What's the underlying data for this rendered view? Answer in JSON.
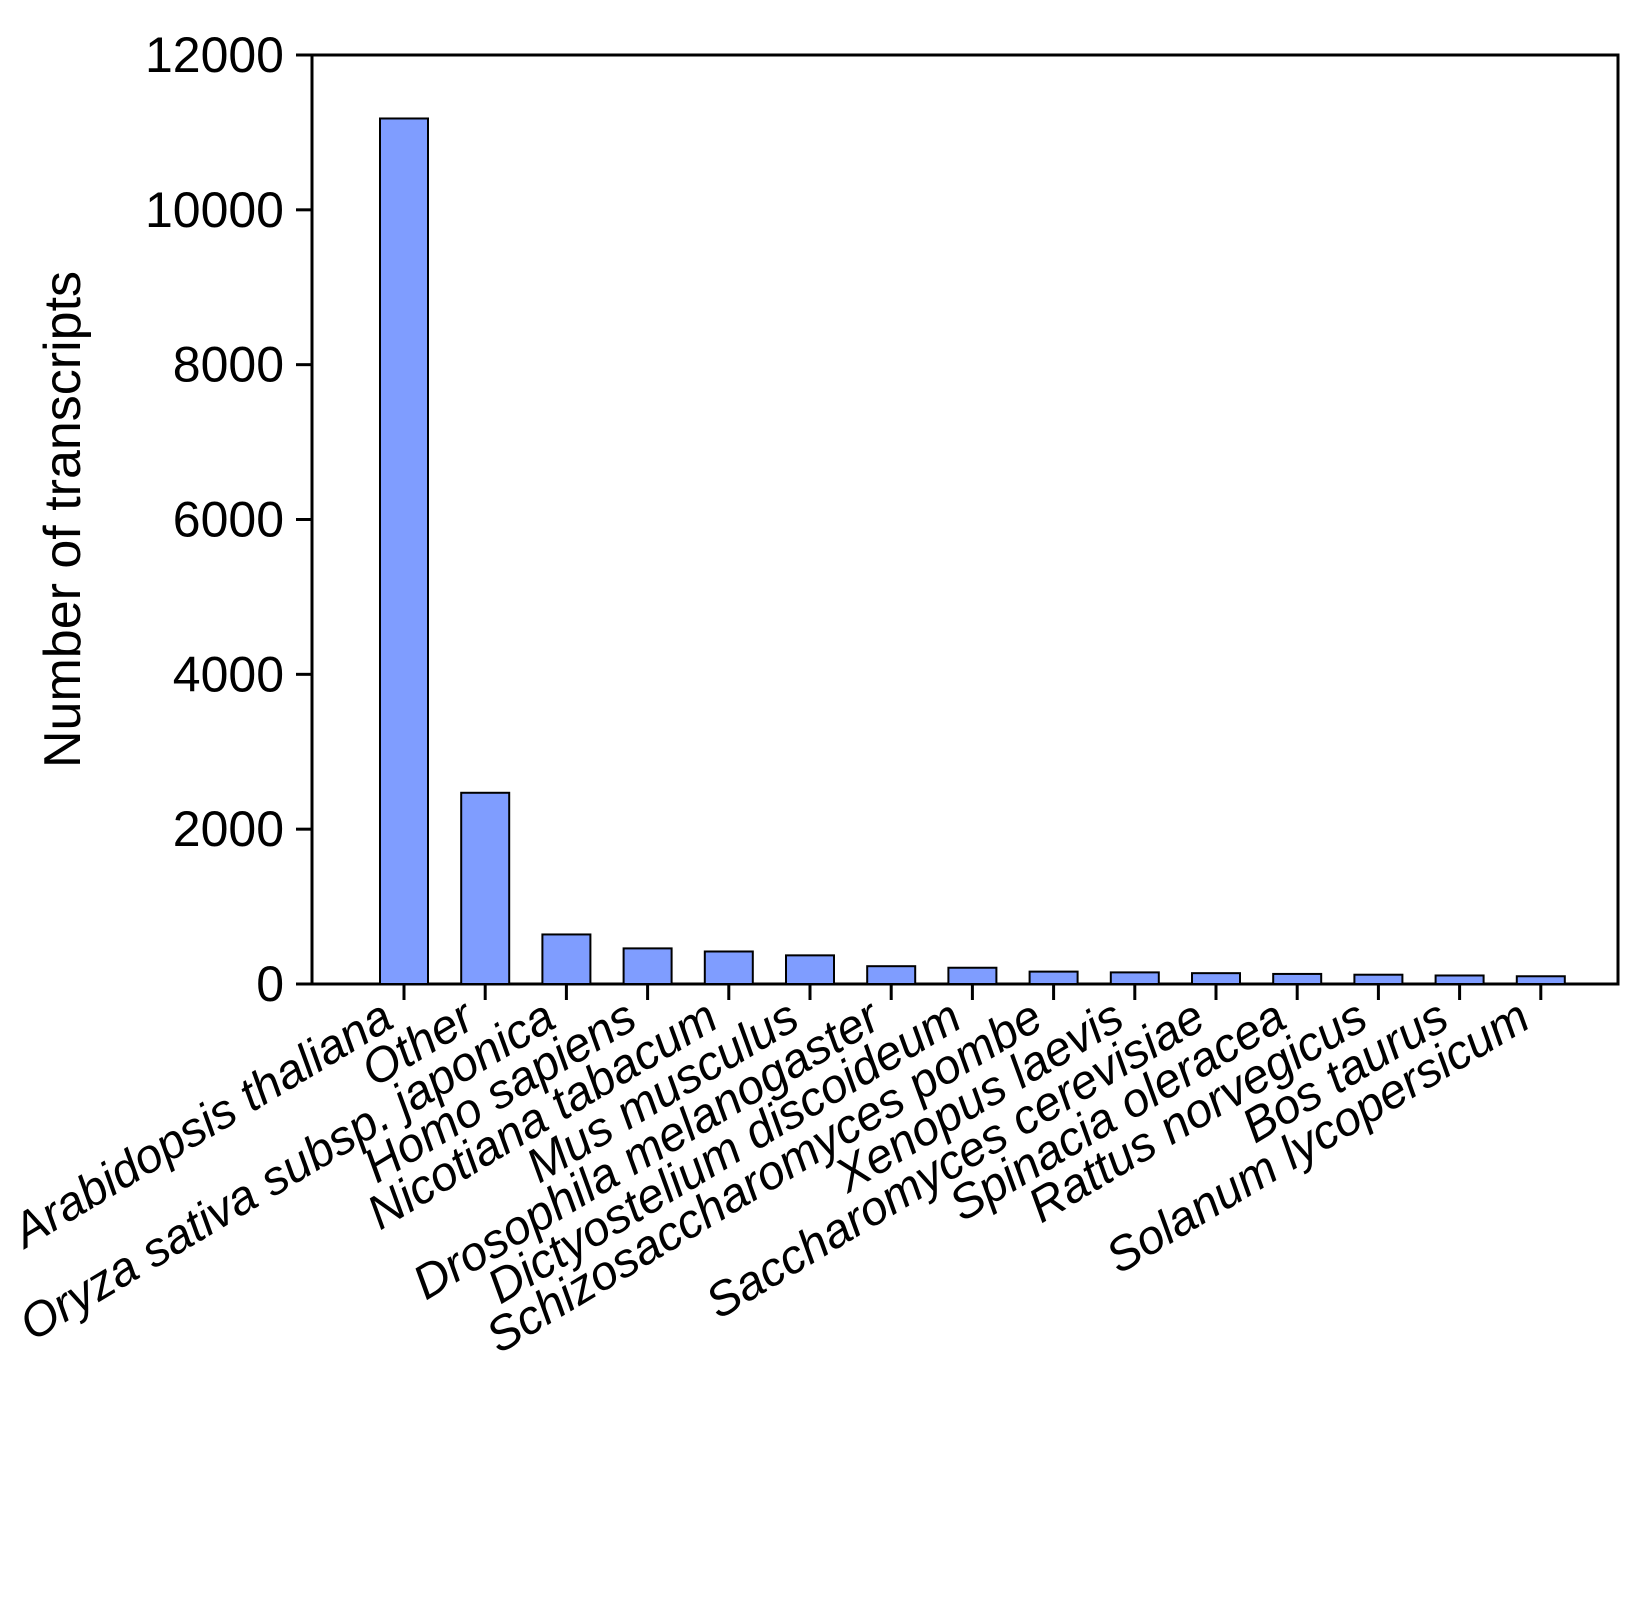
{
  "chart_data": {
    "type": "bar",
    "title": "",
    "xlabel": "",
    "ylabel": "Number of transcripts",
    "ylim": [
      0,
      12000
    ],
    "yticks": [
      0,
      2000,
      4000,
      6000,
      8000,
      10000,
      12000
    ],
    "grid": false,
    "legend": "none",
    "bar_color": "#7f9dff",
    "categories": [
      "Arabidopsis thaliana",
      "Other",
      "Oryza sativa subsp. japonica",
      "Homo sapiens",
      "Nicotiana tabacum",
      "Mus musculus",
      "Drosophila melanogaster",
      "Dictyostelium discoideum",
      "Schizosaccharomyces pombe",
      "Xenopus laevis",
      "Saccharomyces cerevisiae",
      "Spinacia oleracea",
      "Rattus norvegicus",
      "Bos taurus",
      "Solanum lycopersicum"
    ],
    "values": [
      11180,
      2470,
      640,
      460,
      420,
      370,
      230,
      210,
      160,
      150,
      140,
      130,
      120,
      110,
      100
    ]
  }
}
